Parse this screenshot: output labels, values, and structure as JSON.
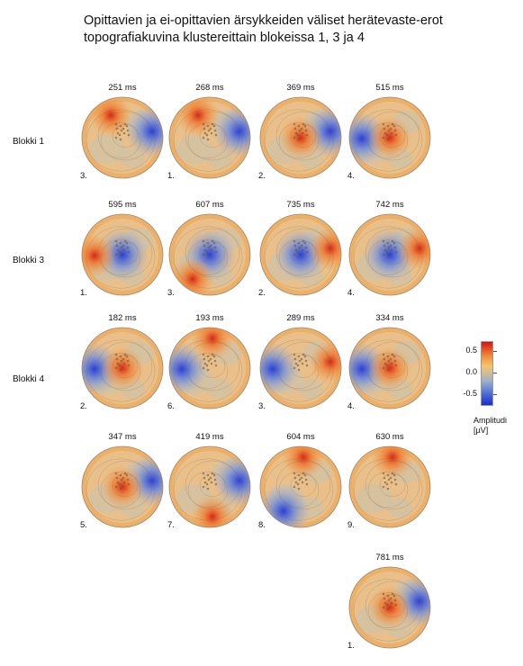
{
  "title": {
    "line1": "Opittavien ja ei-opittavien ärsykkeiden väliset  herätevaste-erot",
    "line2": "topografiakuvina klustereittain blokeissa 1, 3 ja 4"
  },
  "rows": [
    {
      "label": "Blokki 1"
    },
    {
      "label": "Blokki 3"
    },
    {
      "label": "Blokki 4"
    }
  ],
  "maps": [
    {
      "time": "251 ms",
      "cluster": "3.",
      "hot": "front-left",
      "cold": "right"
    },
    {
      "time": "268 ms",
      "cluster": "1.",
      "hot": "front-left",
      "cold": "right"
    },
    {
      "time": "369 ms",
      "cluster": "2.",
      "hot": "center",
      "cold": "right"
    },
    {
      "time": "515 ms",
      "cluster": "4.",
      "hot": "center",
      "cold": "left"
    },
    {
      "time": "595 ms",
      "cluster": "1.",
      "hot": "left",
      "cold": "center"
    },
    {
      "time": "607 ms",
      "cluster": "3.",
      "hot": "bottom-left",
      "cold": "center"
    },
    {
      "time": "735 ms",
      "cluster": "2.",
      "hot": "right",
      "cold": "center"
    },
    {
      "time": "742 ms",
      "cluster": "4.",
      "hot": "right",
      "cold": "center"
    },
    {
      "time": "182 ms",
      "cluster": "2.",
      "hot": "center",
      "cold": "left"
    },
    {
      "time": "193 ms",
      "cluster": "6.",
      "hot": "top",
      "cold": "left"
    },
    {
      "time": "289 ms",
      "cluster": "3.",
      "hot": "right",
      "cold": "left"
    },
    {
      "time": "334 ms",
      "cluster": "4.",
      "hot": "center",
      "cold": "left"
    },
    {
      "time": "347 ms",
      "cluster": "5.",
      "hot": "center",
      "cold": "right"
    },
    {
      "time": "419 ms",
      "cluster": "7.",
      "hot": "bottom",
      "cold": "right"
    },
    {
      "time": "604 ms",
      "cluster": "8.",
      "hot": "top",
      "cold": "bottom-left"
    },
    {
      "time": "630 ms",
      "cluster": "9.",
      "hot": "top",
      "cold": "none"
    },
    {
      "time": "781 ms",
      "cluster": "1.",
      "hot": "center",
      "cold": "right"
    }
  ],
  "legend": {
    "ticks": [
      "0.5",
      "0.0",
      "-0.5"
    ],
    "label_line1": "Amplitudi",
    "label_line2": "[µV]",
    "colors": {
      "max": "#d7120f",
      "mid": "#cdbd9c",
      "min": "#1a2bd0"
    }
  }
}
